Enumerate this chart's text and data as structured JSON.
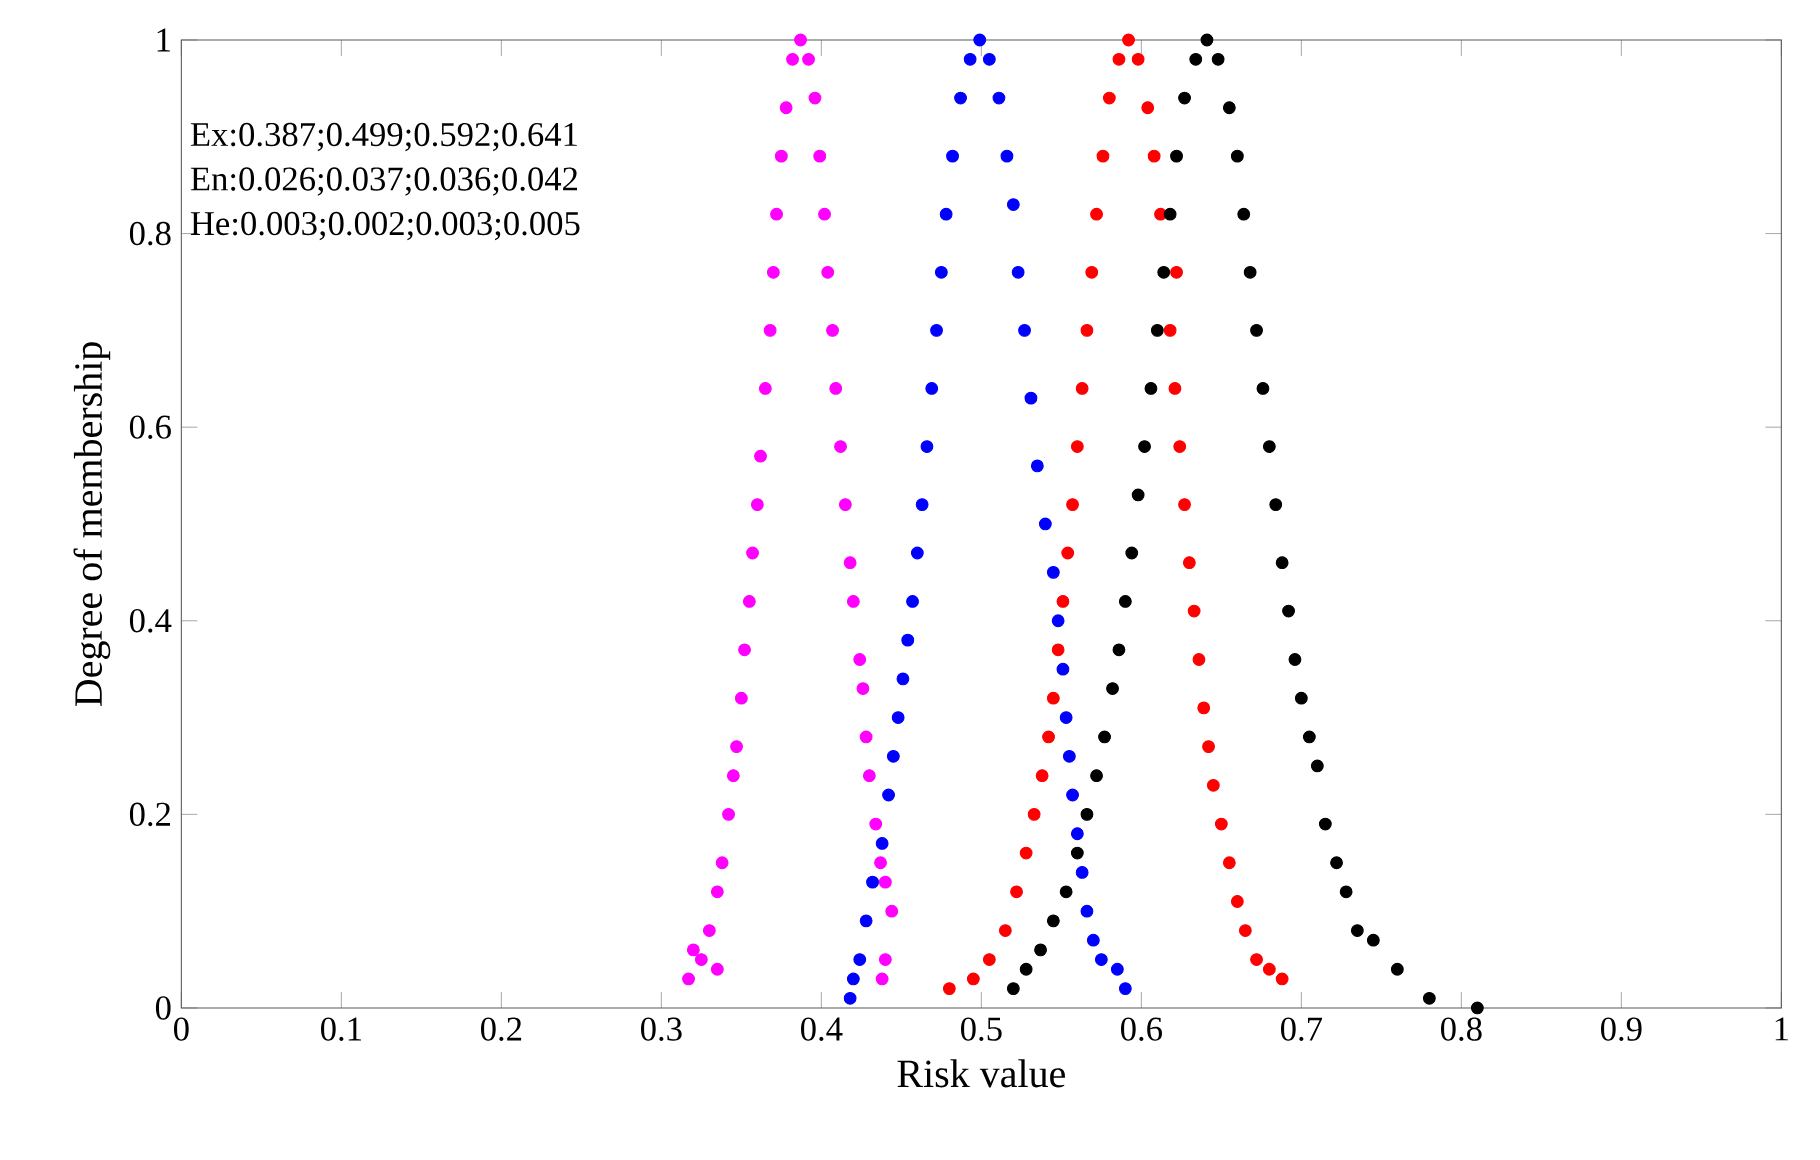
{
  "chart_data": {
    "type": "scatter",
    "xlabel": "Risk value",
    "ylabel": "Degree of membership",
    "xlim": [
      0,
      1
    ],
    "ylim": [
      0,
      1
    ],
    "xticks": [
      0,
      0.1,
      0.2,
      0.3,
      0.4,
      0.5,
      0.6,
      0.7,
      0.8,
      0.9,
      1
    ],
    "yticks": [
      0,
      0.2,
      0.4,
      0.6,
      0.8,
      1
    ],
    "marker": "circle",
    "annotations": [
      "Ex:0.387;0.499;0.592;0.641",
      "En:0.026;0.037;0.036;0.042",
      "He:0.003;0.002;0.003;0.005"
    ],
    "series": [
      {
        "color": "#ff00ff",
        "x": [
          0.387,
          0.382,
          0.392,
          0.378,
          0.396,
          0.375,
          0.399,
          0.372,
          0.402,
          0.37,
          0.404,
          0.368,
          0.407,
          0.365,
          0.409,
          0.362,
          0.412,
          0.36,
          0.415,
          0.357,
          0.418,
          0.355,
          0.42,
          0.352,
          0.424,
          0.35,
          0.426,
          0.347,
          0.428,
          0.345,
          0.43,
          0.342,
          0.434,
          0.338,
          0.437,
          0.335,
          0.44,
          0.33,
          0.444,
          0.325,
          0.32,
          0.317,
          0.44,
          0.438,
          0.335
        ],
        "values": [
          1.0,
          0.98,
          0.98,
          0.93,
          0.94,
          0.88,
          0.88,
          0.82,
          0.82,
          0.76,
          0.76,
          0.7,
          0.7,
          0.64,
          0.64,
          0.57,
          0.58,
          0.52,
          0.52,
          0.47,
          0.46,
          0.42,
          0.42,
          0.37,
          0.36,
          0.32,
          0.33,
          0.27,
          0.28,
          0.24,
          0.24,
          0.2,
          0.19,
          0.15,
          0.15,
          0.12,
          0.13,
          0.08,
          0.1,
          0.05,
          0.06,
          0.03,
          0.05,
          0.03,
          0.04
        ]
      },
      {
        "color": "#0000ff",
        "x": [
          0.499,
          0.493,
          0.505,
          0.487,
          0.511,
          0.482,
          0.516,
          0.478,
          0.52,
          0.475,
          0.523,
          0.472,
          0.527,
          0.469,
          0.531,
          0.466,
          0.535,
          0.463,
          0.54,
          0.46,
          0.545,
          0.457,
          0.548,
          0.454,
          0.551,
          0.451,
          0.553,
          0.448,
          0.555,
          0.445,
          0.557,
          0.442,
          0.56,
          0.438,
          0.563,
          0.432,
          0.566,
          0.428,
          0.57,
          0.424,
          0.575,
          0.42,
          0.585,
          0.59,
          0.418
        ],
        "values": [
          1.0,
          0.98,
          0.98,
          0.94,
          0.94,
          0.88,
          0.88,
          0.82,
          0.83,
          0.76,
          0.76,
          0.7,
          0.7,
          0.64,
          0.63,
          0.58,
          0.56,
          0.52,
          0.5,
          0.47,
          0.45,
          0.42,
          0.4,
          0.38,
          0.35,
          0.34,
          0.3,
          0.3,
          0.26,
          0.26,
          0.22,
          0.22,
          0.18,
          0.17,
          0.14,
          0.13,
          0.1,
          0.09,
          0.07,
          0.05,
          0.05,
          0.03,
          0.04,
          0.02,
          0.01
        ]
      },
      {
        "color": "#ff0000",
        "x": [
          0.592,
          0.586,
          0.598,
          0.58,
          0.604,
          0.576,
          0.608,
          0.572,
          0.612,
          0.569,
          0.622,
          0.566,
          0.618,
          0.563,
          0.621,
          0.56,
          0.624,
          0.557,
          0.627,
          0.554,
          0.63,
          0.551,
          0.633,
          0.548,
          0.636,
          0.545,
          0.639,
          0.542,
          0.642,
          0.538,
          0.645,
          0.533,
          0.65,
          0.528,
          0.655,
          0.522,
          0.66,
          0.515,
          0.665,
          0.505,
          0.672,
          0.495,
          0.68,
          0.48,
          0.688
        ],
        "values": [
          1.0,
          0.98,
          0.98,
          0.94,
          0.93,
          0.88,
          0.88,
          0.82,
          0.82,
          0.76,
          0.76,
          0.7,
          0.7,
          0.64,
          0.64,
          0.58,
          0.58,
          0.52,
          0.52,
          0.47,
          0.46,
          0.42,
          0.41,
          0.37,
          0.36,
          0.32,
          0.31,
          0.28,
          0.27,
          0.24,
          0.23,
          0.2,
          0.19,
          0.16,
          0.15,
          0.12,
          0.11,
          0.08,
          0.08,
          0.05,
          0.05,
          0.03,
          0.04,
          0.02,
          0.03
        ]
      },
      {
        "color": "#000000",
        "x": [
          0.641,
          0.634,
          0.648,
          0.627,
          0.655,
          0.622,
          0.66,
          0.618,
          0.664,
          0.614,
          0.668,
          0.61,
          0.672,
          0.606,
          0.676,
          0.602,
          0.68,
          0.598,
          0.684,
          0.594,
          0.688,
          0.59,
          0.692,
          0.586,
          0.696,
          0.582,
          0.7,
          0.577,
          0.705,
          0.572,
          0.71,
          0.566,
          0.715,
          0.56,
          0.722,
          0.553,
          0.728,
          0.545,
          0.735,
          0.537,
          0.745,
          0.528,
          0.76,
          0.78,
          0.81,
          0.52
        ],
        "values": [
          1.0,
          0.98,
          0.98,
          0.94,
          0.93,
          0.88,
          0.88,
          0.82,
          0.82,
          0.76,
          0.76,
          0.7,
          0.7,
          0.64,
          0.64,
          0.58,
          0.58,
          0.53,
          0.52,
          0.47,
          0.46,
          0.42,
          0.41,
          0.37,
          0.36,
          0.33,
          0.32,
          0.28,
          0.28,
          0.24,
          0.25,
          0.2,
          0.19,
          0.16,
          0.15,
          0.12,
          0.12,
          0.09,
          0.08,
          0.06,
          0.07,
          0.04,
          0.04,
          0.01,
          0.0,
          0.02
        ]
      }
    ]
  }
}
